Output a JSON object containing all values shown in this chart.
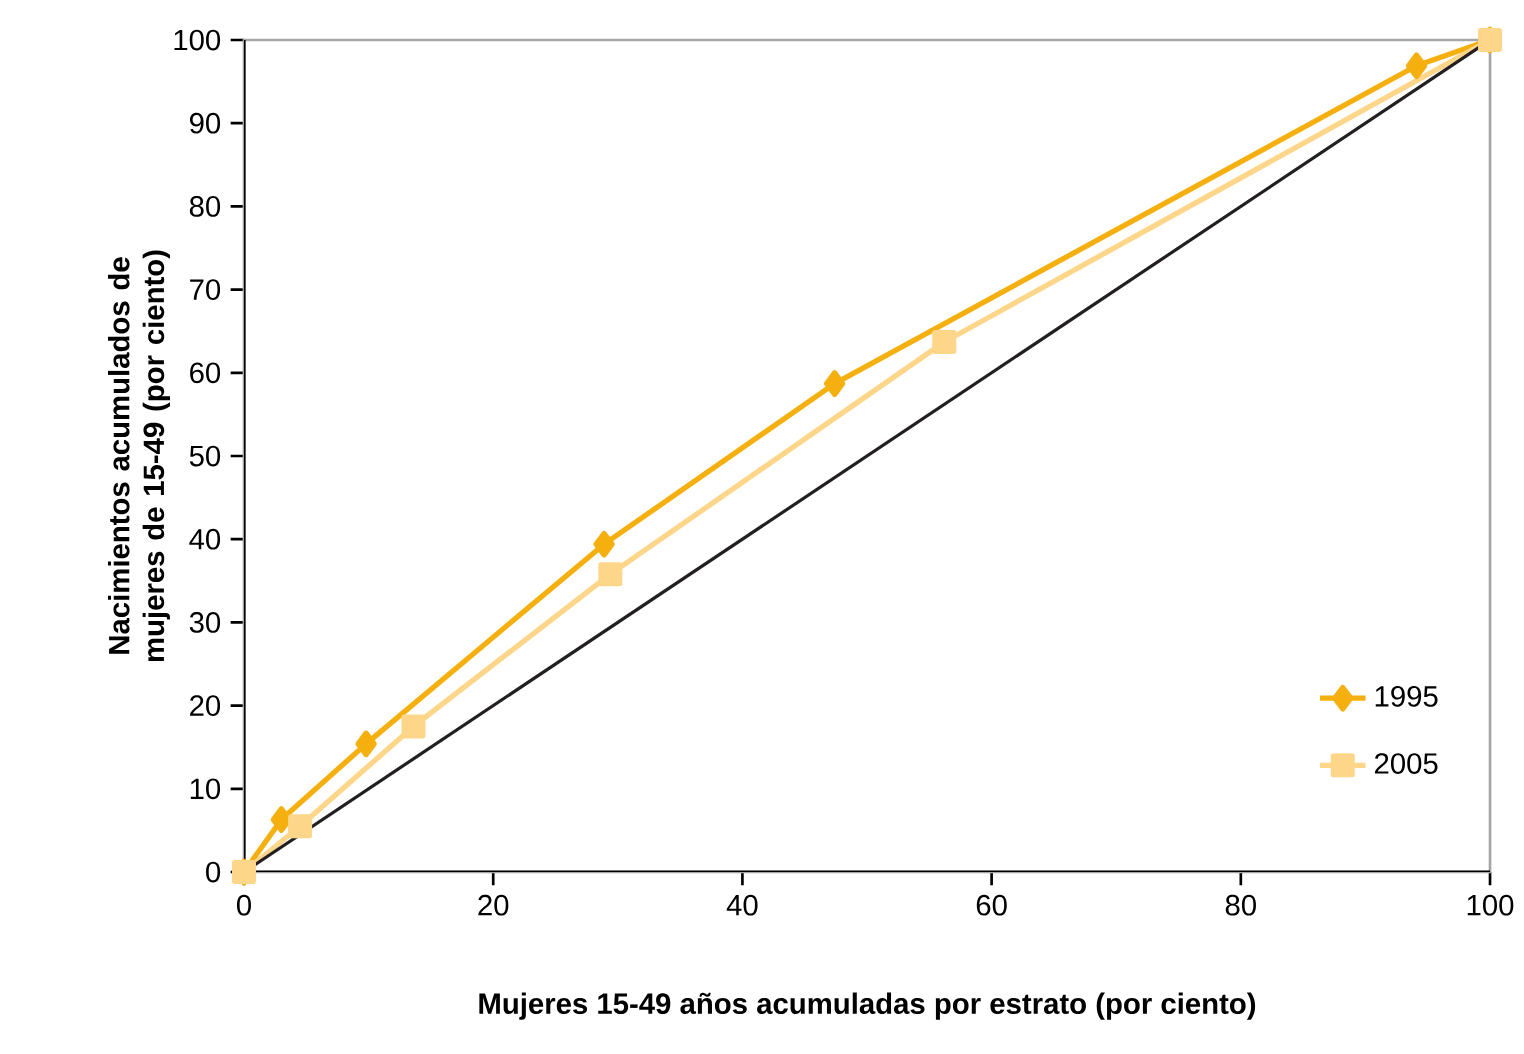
{
  "chart_data": {
    "type": "line",
    "xlabel": "Mujeres 15-49 años acumuladas por estrato (por ciento)",
    "ylabel": "Nacimientos acumulados de mujeres de 15-49 (por ciento)",
    "xlim": [
      0,
      100
    ],
    "ylim": [
      0,
      100
    ],
    "xticks": [
      0,
      20,
      40,
      60,
      80,
      100
    ],
    "yticks": [
      0,
      10,
      20,
      30,
      40,
      50,
      60,
      70,
      80,
      90,
      100
    ],
    "grid": false,
    "legend": "bottom right",
    "series": [
      {
        "name": "1995",
        "color": "#f5b00f",
        "marker": "diamond",
        "x": [
          0,
          3,
          9.8,
          28.9,
          47.4,
          94.1,
          100
        ],
        "values": [
          0,
          6.3,
          15.4,
          39.4,
          58.7,
          96.9,
          100
        ]
      },
      {
        "name": "2005",
        "color": "#fdd68a",
        "marker": "square",
        "x": [
          0,
          4.5,
          13.6,
          29.4,
          56.2,
          100
        ],
        "values": [
          0,
          5.5,
          17.5,
          35.8,
          63.7,
          100
        ]
      },
      {
        "color": "#231f20",
        "marker": "none",
        "x": [
          0,
          100
        ],
        "values": [
          0,
          100
        ]
      }
    ]
  }
}
